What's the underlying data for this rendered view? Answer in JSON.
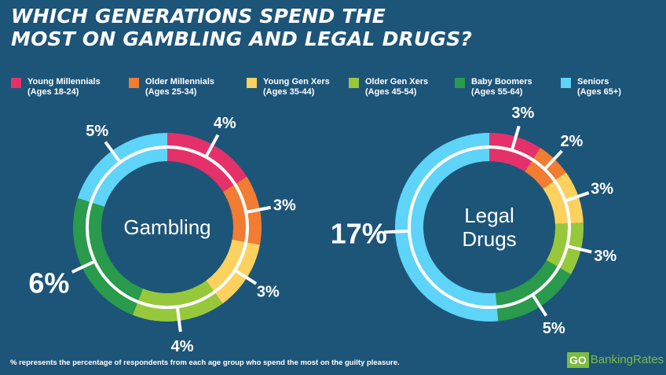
{
  "title_lines": [
    "WHICH GENERATIONS SPEND THE",
    "MOST ON GAMBLING AND LEGAL DRUGS?"
  ],
  "legend": [
    {
      "name": "Young Millennials",
      "ages": "(Ages 18-24)",
      "color": "#e5316a"
    },
    {
      "name": "Older Millennials",
      "ages": "(Ages 25-34)",
      "color": "#f27c32"
    },
    {
      "name": "Young Gen Xers",
      "ages": "(Ages 35-44)",
      "color": "#fdd15d"
    },
    {
      "name": "Older Gen Xers",
      "ages": "(Ages 45-54)",
      "color": "#97c83c"
    },
    {
      "name": "Baby Boomers",
      "ages": "(Ages 55-64)",
      "color": "#2a9a4c"
    },
    {
      "name": "Seniors",
      "ages": "(Ages 65+)",
      "color": "#5ed4f8"
    }
  ],
  "chart_data": [
    {
      "type": "pie",
      "title": "Gambling",
      "categories": [
        "Young Millennials",
        "Older Millennials",
        "Young Gen Xers",
        "Older Gen Xers",
        "Baby Boomers",
        "Seniors"
      ],
      "values": [
        4,
        3,
        3,
        4,
        6,
        5
      ],
      "labels": [
        "4%",
        "3%",
        "3%",
        "4%",
        "6%",
        "5%"
      ]
    },
    {
      "type": "pie",
      "title": "Legal\nDrugs",
      "categories": [
        "Young Millennials",
        "Older Millennials",
        "Young Gen Xers",
        "Older Gen Xers",
        "Baby Boomers",
        "Seniors"
      ],
      "values": [
        3,
        2,
        3,
        3,
        5,
        17
      ],
      "labels": [
        "3%",
        "2%",
        "3%",
        "3%",
        "5%",
        "17%"
      ]
    }
  ],
  "footnote": "% represents the percentage of respondents from each age group who spend the most on the guilty pleasure.",
  "logo": {
    "go": "GO",
    "text": "BankingRates"
  }
}
